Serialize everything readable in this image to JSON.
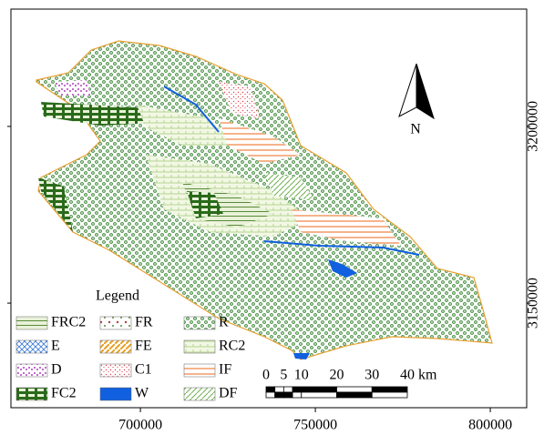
{
  "map": {
    "xlim": [
      663000,
      810400
    ],
    "ylim": [
      3120400,
      3233200
    ],
    "x_ticks": [
      700000,
      750000,
      800000
    ],
    "y_ticks": [
      3150000,
      3200000
    ],
    "north_label": "N",
    "legend": {
      "title": "Legend",
      "items": [
        "FRC2",
        "FR",
        "R",
        "E",
        "FE",
        "RC2",
        "D",
        "C1",
        "IF",
        "FC2",
        "W",
        "DF"
      ]
    },
    "scale_bar": {
      "ticks": [
        0,
        5,
        10,
        20,
        30,
        40
      ],
      "unit": "km"
    }
  }
}
